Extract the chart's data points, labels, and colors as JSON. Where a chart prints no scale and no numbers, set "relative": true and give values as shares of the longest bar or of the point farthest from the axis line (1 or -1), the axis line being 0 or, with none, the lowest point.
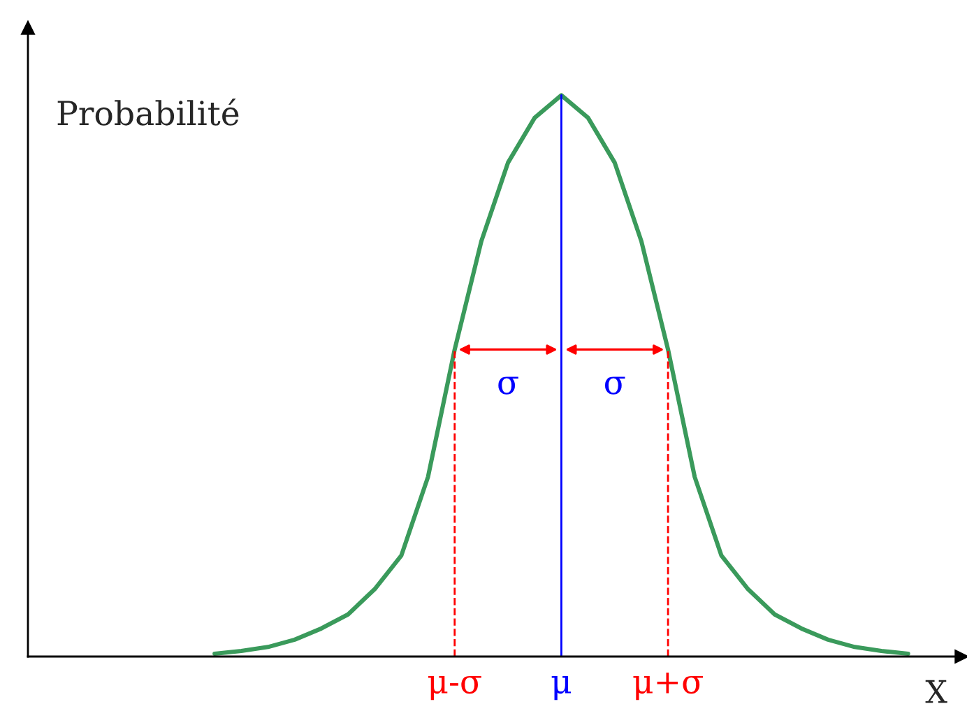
{
  "chart_data": {
    "type": "line",
    "relative": true,
    "ylabel": "Probabilité",
    "xlabel": "X",
    "categories": [
      null,
      null,
      null,
      null,
      null,
      null,
      null,
      null,
      null,
      null,
      null,
      null,
      null,
      null,
      null,
      null,
      "μ-σ",
      null,
      null,
      null,
      "μ",
      null,
      null,
      null,
      "μ+σ",
      null,
      null,
      null,
      null,
      null,
      null,
      null,
      null,
      null,
      null,
      null
    ],
    "series": [
      {
        "color": "#3a9a5b",
        "values": [
          null,
          null,
          null,
          null,
          null,
          null,
          null,
          0.005,
          0.01,
          0.017,
          0.03,
          0.05,
          0.075,
          0.12,
          0.18,
          0.32,
          0.547,
          0.74,
          0.88,
          0.96,
          1,
          0.96,
          0.88,
          0.74,
          0.547,
          0.32,
          0.18,
          0.12,
          0.075,
          0.05,
          0.03,
          0.017,
          0.01,
          0.005,
          null,
          null
        ]
      }
    ],
    "ref_lines": [
      {
        "axis": "x",
        "value": "μ-σ",
        "color": "#ff0000",
        "line_style": "dashed"
      },
      {
        "axis": "x",
        "value": "μ",
        "color": "#0000ff",
        "line_style": "solid"
      },
      {
        "axis": "x",
        "value": "μ+σ",
        "color": "#ff0000",
        "line_style": "dashed"
      }
    ],
    "annotations": [
      "σ",
      "σ"
    ],
    "grid": false
  }
}
